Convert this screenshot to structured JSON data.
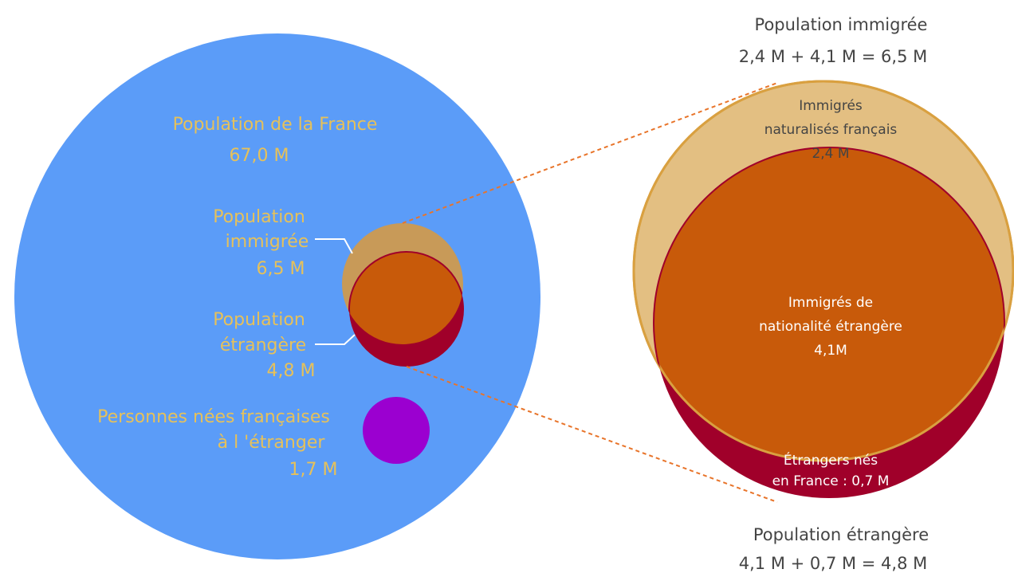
{
  "left": {
    "france": {
      "title": "Population de la France",
      "value": "67,0 M"
    },
    "immigree": {
      "lines": [
        "Population",
        "immigrée"
      ],
      "value": "6,5 M"
    },
    "etrangere": {
      "lines": [
        "Population",
        "étrangère"
      ],
      "value": "4,8 M"
    },
    "nees_etranger": {
      "lines": [
        "Personnes nées françaises",
        "à l 'étranger"
      ],
      "value": "1,7 M"
    }
  },
  "right": {
    "header": {
      "title": "Population immigrée",
      "formula": "2,4 M + 4,1 M = 6,5 M"
    },
    "naturalises": {
      "lines": [
        "Immigrés",
        "naturalisés français"
      ],
      "value": "2,4 M"
    },
    "nationalite": {
      "lines": [
        "Immigrés de",
        "nationalité étrangère"
      ],
      "value": "4,1M"
    },
    "nes_france": {
      "lines": [
        "Étrangers nés",
        "en France : 0,7 M"
      ]
    },
    "footer": {
      "title": "Population étrangère",
      "formula": "4,1 M + 0,7 M = 4,8 M"
    }
  }
}
